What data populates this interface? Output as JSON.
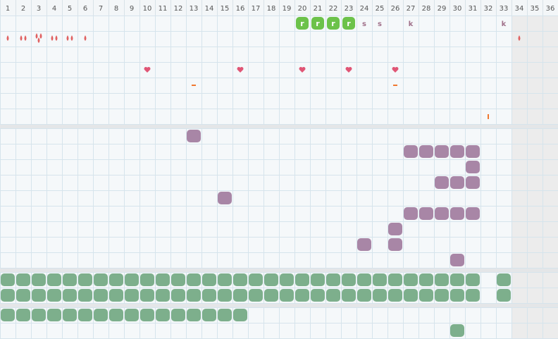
{
  "header": {
    "columns": [
      1,
      2,
      3,
      4,
      5,
      6,
      7,
      8,
      9,
      10,
      11,
      12,
      13,
      14,
      15,
      16,
      17,
      18,
      19,
      20,
      21,
      22,
      23,
      24,
      25,
      26,
      27,
      28,
      29,
      30,
      31,
      32,
      33,
      34,
      35,
      36
    ]
  },
  "sections": [
    {
      "color": "#e06060",
      "rows": [
        [
          {
            "kind": "badge",
            "cols": [
              20,
              21,
              22,
              23
            ],
            "text": "r"
          },
          {
            "kind": "letter",
            "cols": [
              24,
              25
            ],
            "text": "s"
          },
          {
            "kind": "letter",
            "cols": [
              27,
              33
            ],
            "text": "k"
          }
        ],
        [
          {
            "kind": "drop",
            "cols": [
              1,
              2,
              3,
              4,
              5,
              6,
              34
            ],
            "counts": [
              1,
              2,
              3,
              2,
              2,
              1,
              1
            ]
          }
        ],
        [],
        [
          {
            "kind": "heart",
            "cols": [
              10,
              16,
              20,
              23,
              26
            ]
          }
        ],
        [
          {
            "kind": "dash",
            "cols": [
              13,
              26
            ]
          }
        ],
        [],
        [
          {
            "kind": "tick",
            "cols": [
              32
            ]
          }
        ]
      ]
    },
    {
      "color": "#a886a6",
      "rows": [
        [
          {
            "kind": "blob",
            "cols": [
              13
            ]
          }
        ],
        [
          {
            "kind": "blob",
            "cols": [
              27,
              28,
              29,
              30,
              31
            ]
          }
        ],
        [
          {
            "kind": "blob",
            "cols": [
              31
            ]
          }
        ],
        [
          {
            "kind": "blob",
            "cols": [
              29,
              30,
              31
            ]
          }
        ],
        [
          {
            "kind": "blob",
            "cols": [
              15
            ]
          }
        ],
        [
          {
            "kind": "blob",
            "cols": [
              27,
              28,
              29,
              30,
              31
            ]
          }
        ],
        [
          {
            "kind": "blob",
            "cols": [
              26
            ]
          }
        ],
        [
          {
            "kind": "blob",
            "cols": [
              24,
              26
            ]
          }
        ],
        [
          {
            "kind": "blob",
            "cols": [
              30
            ]
          }
        ]
      ]
    },
    {
      "color": "#7daf8c",
      "rows": [
        [
          {
            "kind": "blob",
            "cols": [
              1,
              2,
              3,
              4,
              5,
              6,
              7,
              8,
              9,
              10,
              11,
              12,
              13,
              14,
              15,
              16,
              17,
              18,
              19,
              20,
              21,
              22,
              23,
              24,
              25,
              26,
              27,
              28,
              29,
              30,
              31,
              33
            ]
          }
        ],
        [
          {
            "kind": "blob",
            "cols": [
              1,
              2,
              3,
              4,
              5,
              6,
              7,
              8,
              9,
              10,
              11,
              12,
              13,
              14,
              15,
              16,
              17,
              18,
              19,
              20,
              21,
              22,
              23,
              24,
              25,
              26,
              27,
              28,
              29,
              30,
              31,
              33
            ]
          }
        ]
      ]
    },
    {
      "color": "#7daf8c",
      "rows": [
        [
          {
            "kind": "blob",
            "cols": [
              1,
              2,
              3,
              4,
              5,
              6,
              7,
              8,
              9,
              10,
              11,
              12,
              13,
              14,
              15,
              16
            ]
          }
        ],
        [
          {
            "kind": "blob",
            "cols": [
              30
            ]
          }
        ]
      ]
    }
  ]
}
